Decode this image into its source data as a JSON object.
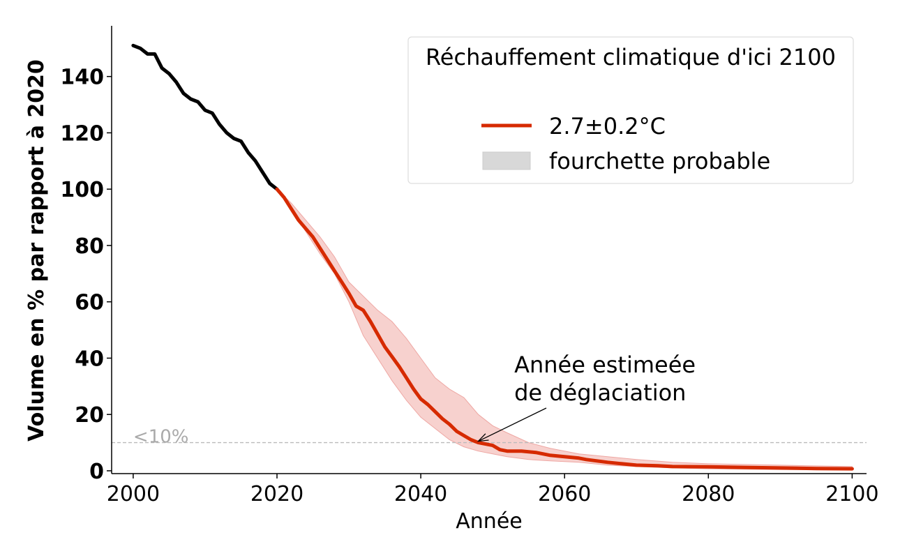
{
  "chart_data": {
    "type": "line",
    "xlabel": "Année",
    "ylabel": "Volume en % par rapport à 2020",
    "xlim": [
      1997,
      2102
    ],
    "ylim": [
      -1,
      158
    ],
    "x_ticks": [
      2000,
      2020,
      2040,
      2060,
      2080,
      2100
    ],
    "y_ticks": [
      0,
      20,
      40,
      60,
      80,
      100,
      120,
      140
    ],
    "grid": false,
    "legend": {
      "title": "Réchauffement climatique d'ici 2100",
      "placement": "top-right",
      "entries": [
        "2.7±0.2°C",
        "fourchette probable"
      ]
    },
    "colors": {
      "historical": "#000000",
      "projection": "#d62a00",
      "band": "#f3b8b4",
      "threshold": "#bbbbbb",
      "threshold_label": "#aaaaaa"
    },
    "threshold": {
      "y": 10,
      "label": "<10%"
    },
    "annotation": {
      "text_lines": [
        "Année estimeée",
        "de déglaciation"
      ],
      "point": [
        2048,
        10
      ],
      "text_anchor": [
        2053,
        35
      ]
    },
    "series": [
      {
        "role": "historical",
        "x": [
          2000,
          2001,
          2002,
          2003,
          2004,
          2005,
          2006,
          2007,
          2008,
          2009,
          2010,
          2011,
          2012,
          2013,
          2014,
          2015,
          2016,
          2017,
          2018,
          2019,
          2020
        ],
        "values": [
          151,
          150,
          148,
          148,
          143,
          141,
          138,
          134,
          132,
          131,
          128,
          127,
          123,
          120,
          118,
          117,
          113,
          110,
          106,
          102,
          100
        ]
      },
      {
        "name": "2.7±0.2°C",
        "role": "projection",
        "x": [
          2020,
          2021,
          2022,
          2023,
          2024,
          2025,
          2026,
          2027,
          2028,
          2029,
          2030,
          2031,
          2032,
          2033,
          2034,
          2035,
          2036,
          2037,
          2038,
          2039,
          2040,
          2041,
          2042,
          2043,
          2044,
          2045,
          2046,
          2047,
          2048,
          2049,
          2050,
          2051,
          2052,
          2054,
          2056,
          2058,
          2060,
          2062,
          2063,
          2066,
          2068,
          2070,
          2073,
          2075,
          2080,
          2085,
          2090,
          2095,
          2100
        ],
        "values": [
          100,
          97,
          93,
          89,
          86,
          83,
          79,
          75,
          71,
          67,
          63,
          58.5,
          57,
          53,
          48.5,
          44,
          40.5,
          37,
          33,
          29,
          25.5,
          23.5,
          21,
          18.5,
          16.5,
          14,
          12.5,
          11,
          10,
          9.5,
          9,
          7.5,
          7,
          7,
          6.5,
          5.5,
          5,
          4.5,
          4,
          3,
          2.5,
          2,
          1.8,
          1.5,
          1.4,
          1.2,
          1.0,
          0.8,
          0.7
        ]
      },
      {
        "name": "fourchette probable",
        "role": "band",
        "x": [
          2020,
          2022,
          2024,
          2026,
          2028,
          2030,
          2032,
          2034,
          2036,
          2038,
          2040,
          2042,
          2044,
          2046,
          2048,
          2050,
          2052,
          2055,
          2058,
          2062,
          2066,
          2070,
          2075,
          2080,
          2090,
          2100
        ],
        "lower": [
          100,
          93,
          85,
          77,
          70,
          60,
          48,
          40,
          32,
          25,
          19,
          15,
          11,
          8.5,
          7,
          6,
          5,
          4,
          3.5,
          3,
          2,
          1.5,
          1,
          0.7,
          0.4,
          0.3
        ],
        "upper": [
          100,
          95,
          89,
          83,
          76,
          67,
          62,
          57,
          53,
          47,
          40,
          33,
          29,
          26,
          20,
          16,
          13.5,
          10,
          8,
          6,
          5,
          4,
          3,
          2.5,
          2,
          1.5
        ]
      }
    ]
  }
}
